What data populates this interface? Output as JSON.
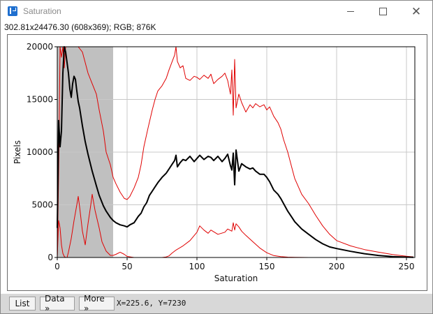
{
  "window": {
    "title": "Saturation"
  },
  "info_line": "302.81x24476.30   (608x369); RGB; 876K",
  "toolbar": {
    "list_label": "List",
    "data_label": "Data »",
    "more_label": "More »",
    "coordinates": "X=225.6, Y=7230"
  },
  "colors": {
    "shade": "#c0c0c0",
    "series_main": "#000000",
    "series_channels": "#e00000",
    "grid": "#c8c8c8"
  },
  "chart_data": {
    "type": "line",
    "xlabel": "Saturation",
    "ylabel": "Pixels",
    "xlim": [
      0,
      256
    ],
    "ylim": [
      0,
      20000
    ],
    "x_ticks": [
      0,
      50,
      100,
      150,
      200,
      250
    ],
    "y_ticks": [
      0,
      5000,
      10000,
      15000,
      20000
    ],
    "grid": true,
    "shaded_range": [
      0,
      40
    ],
    "series": [
      {
        "color": "#e00000",
        "width": 1,
        "x": [
          0,
          1,
          2,
          3,
          4,
          5,
          6,
          8,
          10,
          12,
          15,
          18,
          20,
          22,
          25,
          28,
          30,
          33,
          35,
          38,
          40,
          42,
          45,
          48,
          50,
          52,
          55,
          58,
          60,
          62,
          65,
          68,
          70,
          72,
          75,
          78,
          80,
          82,
          84,
          85,
          86,
          88,
          90,
          92,
          95,
          98,
          100,
          102,
          105,
          108,
          110,
          112,
          115,
          118,
          120,
          122,
          124,
          125,
          126,
          127,
          128,
          130,
          132,
          135,
          138,
          140,
          142,
          145,
          148,
          150,
          152,
          155,
          158,
          160,
          162,
          165,
          168,
          170,
          175,
          180,
          185,
          190,
          195,
          200,
          210,
          220,
          230,
          240,
          250,
          255
        ],
        "y": [
          0,
          8000,
          20000,
          19000,
          20000,
          18000,
          20000,
          20000,
          20000,
          20000,
          20000,
          19500,
          18500,
          17500,
          16500,
          15500,
          14000,
          12000,
          10000,
          8800,
          7600,
          7000,
          6200,
          5600,
          5500,
          5800,
          6600,
          7600,
          8800,
          10500,
          12300,
          14000,
          15000,
          15800,
          16300,
          17000,
          17800,
          18500,
          19200,
          20000,
          18600,
          18000,
          18200,
          17000,
          16800,
          17200,
          17100,
          16900,
          17300,
          17000,
          17400,
          16500,
          16900,
          17200,
          17500,
          16800,
          15500,
          17800,
          13500,
          18800,
          14200,
          15500,
          14700,
          13800,
          14500,
          14200,
          14600,
          14300,
          14500,
          14000,
          14300,
          13400,
          12800,
          12200,
          11200,
          10000,
          8500,
          7500,
          6000,
          5100,
          4000,
          3000,
          2200,
          1600,
          1100,
          750,
          500,
          280,
          120,
          60
        ]
      },
      {
        "color": "#e00000",
        "width": 1,
        "x": [
          0,
          1,
          2,
          3,
          4,
          5,
          6,
          7,
          8,
          10,
          12,
          14,
          15,
          16,
          18,
          20,
          22,
          24,
          25,
          27,
          30,
          32,
          35,
          38,
          40,
          42,
          45,
          48,
          50,
          55,
          60,
          65,
          70,
          75,
          78,
          80,
          82,
          85,
          90,
          95,
          100,
          102,
          105,
          108,
          110,
          115,
          120,
          122,
          125,
          126,
          127,
          128,
          130,
          132,
          135,
          140,
          145,
          150,
          155,
          160,
          165,
          170,
          180,
          190,
          200,
          210,
          220,
          230,
          240,
          250,
          255
        ],
        "y": [
          0,
          3500,
          2800,
          1200,
          400,
          100,
          0,
          0,
          500,
          1800,
          3500,
          5000,
          5800,
          4800,
          2500,
          1200,
          3200,
          5000,
          6000,
          4500,
          2800,
          1500,
          600,
          200,
          200,
          300,
          500,
          300,
          100,
          0,
          0,
          0,
          0,
          0,
          50,
          150,
          400,
          700,
          1100,
          1600,
          2400,
          3000,
          2600,
          2300,
          2600,
          2200,
          2400,
          2700,
          2500,
          3300,
          2600,
          3200,
          2900,
          2500,
          2100,
          1500,
          900,
          450,
          180,
          80,
          30,
          10,
          0,
          0,
          0,
          0,
          0,
          0,
          0,
          0,
          0
        ]
      },
      {
        "color": "#000000",
        "width": 2,
        "x": [
          0,
          1,
          2,
          3,
          4,
          5,
          6,
          7,
          8,
          9,
          10,
          11,
          12,
          13,
          14,
          15,
          16,
          18,
          20,
          22,
          25,
          28,
          30,
          33,
          35,
          38,
          40,
          42,
          45,
          48,
          50,
          52,
          55,
          58,
          60,
          62,
          64,
          66,
          68,
          70,
          72,
          75,
          78,
          80,
          82,
          84,
          85,
          86,
          88,
          90,
          92,
          95,
          98,
          100,
          102,
          105,
          108,
          110,
          112,
          115,
          118,
          120,
          122,
          124,
          125,
          126,
          127,
          128,
          130,
          132,
          135,
          138,
          140,
          142,
          145,
          148,
          150,
          152,
          155,
          158,
          160,
          165,
          168,
          170,
          175,
          180,
          185,
          190,
          195,
          200,
          210,
          220,
          230,
          240,
          250,
          255
        ],
        "y": [
          2800,
          13000,
          10500,
          12000,
          17500,
          20000,
          19500,
          18500,
          17500,
          16000,
          15200,
          16500,
          17200,
          16900,
          15800,
          14800,
          14200,
          12500,
          11000,
          9800,
          8200,
          6800,
          5900,
          4900,
          4400,
          3800,
          3500,
          3300,
          3100,
          3000,
          2900,
          3100,
          3300,
          3900,
          4200,
          4800,
          5200,
          5900,
          6300,
          6700,
          7100,
          7600,
          8000,
          8400,
          8800,
          9200,
          9700,
          8600,
          9000,
          9300,
          9200,
          9600,
          9100,
          9400,
          9700,
          9300,
          9600,
          9500,
          9200,
          9600,
          9100,
          9400,
          9800,
          8700,
          8300,
          9900,
          6900,
          10200,
          8200,
          8900,
          8600,
          8400,
          8500,
          8200,
          7900,
          7900,
          7600,
          7200,
          6400,
          6000,
          5600,
          4400,
          3800,
          3400,
          2700,
          2200,
          1700,
          1300,
          1000,
          850,
          580,
          360,
          190,
          80,
          30,
          10
        ]
      }
    ]
  }
}
